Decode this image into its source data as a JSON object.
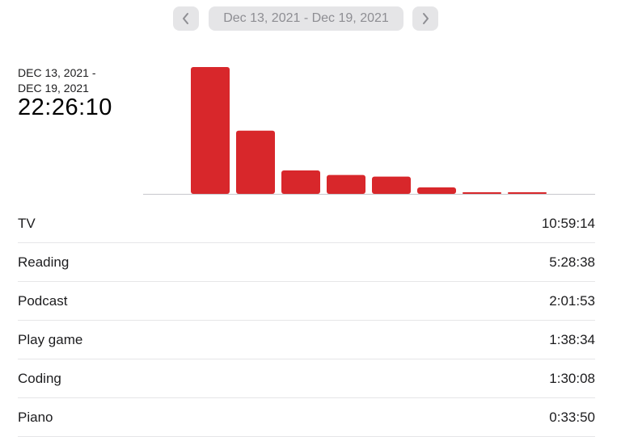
{
  "header": {
    "date_range": "Dec 13, 2021 - Dec 19, 2021",
    "prev_icon": "chevron-left-icon",
    "next_icon": "chevron-right-icon"
  },
  "summary": {
    "date_label": "DEC 13, 2021 -\nDEC 19, 2021",
    "total": "22:26:10"
  },
  "colors": {
    "bar": "#d8272b",
    "baseline": "#c7c7cc"
  },
  "chart_data": {
    "type": "bar",
    "unit": "hours",
    "values": [
      10.99,
      5.48,
      2.03,
      1.64,
      1.5,
      0.56,
      0.12,
      0.1
    ]
  },
  "activities": [
    {
      "name": "TV",
      "time": "10:59:14"
    },
    {
      "name": "Reading",
      "time": "5:28:38"
    },
    {
      "name": "Podcast",
      "time": "2:01:53"
    },
    {
      "name": "Play game",
      "time": "1:38:34"
    },
    {
      "name": "Coding",
      "time": "1:30:08"
    },
    {
      "name": "Piano",
      "time": "0:33:50"
    }
  ]
}
